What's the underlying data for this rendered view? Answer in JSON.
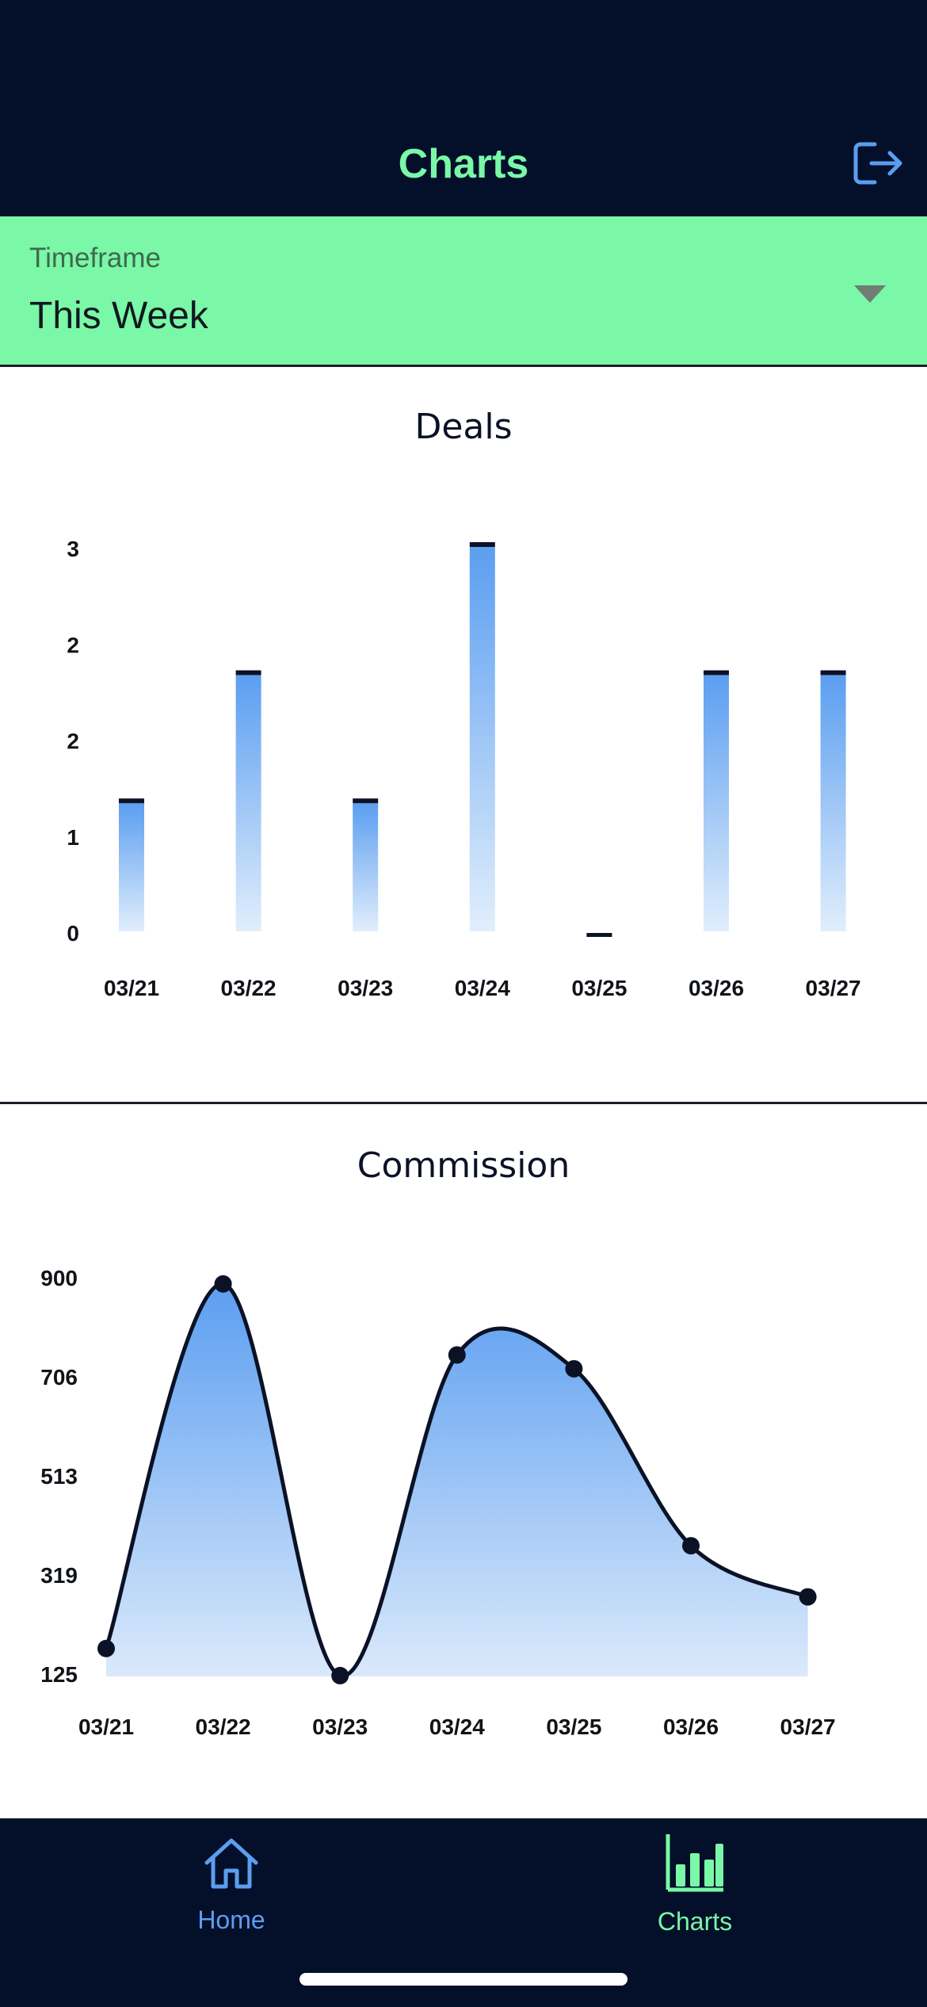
{
  "header": {
    "title": "Charts",
    "logout_icon": "logout-icon"
  },
  "timeframe": {
    "label": "Timeframe",
    "value": "This Week"
  },
  "colors": {
    "navy": "#040f2a",
    "accent_green": "#7af7a7",
    "bar_blue": "#5b9ef0",
    "home_blue": "#5b9ef0"
  },
  "deals": {
    "title": "Deals",
    "chart_data": {
      "type": "bar",
      "categories": [
        "03/21",
        "03/22",
        "03/23",
        "03/24",
        "03/25",
        "03/26",
        "03/27"
      ],
      "values": [
        1,
        2,
        1,
        3,
        0,
        2,
        2
      ],
      "y_ticks": [
        "0",
        "1",
        "2",
        "2",
        "3"
      ],
      "ylim": [
        0,
        3
      ]
    }
  },
  "commission": {
    "title": "Commission",
    "chart_data": {
      "type": "area",
      "categories": [
        "03/21",
        "03/22",
        "03/23",
        "03/24",
        "03/25",
        "03/26",
        "03/27"
      ],
      "values": [
        175,
        888,
        122,
        749,
        722,
        376,
        276
      ],
      "y_ticks": [
        "125",
        "319",
        "513",
        "706",
        "900"
      ],
      "ylim": [
        125,
        900
      ]
    }
  },
  "tabs": [
    {
      "label": "Home",
      "icon": "home-icon",
      "active": false
    },
    {
      "label": "Charts",
      "icon": "bar-chart-icon",
      "active": true
    }
  ]
}
